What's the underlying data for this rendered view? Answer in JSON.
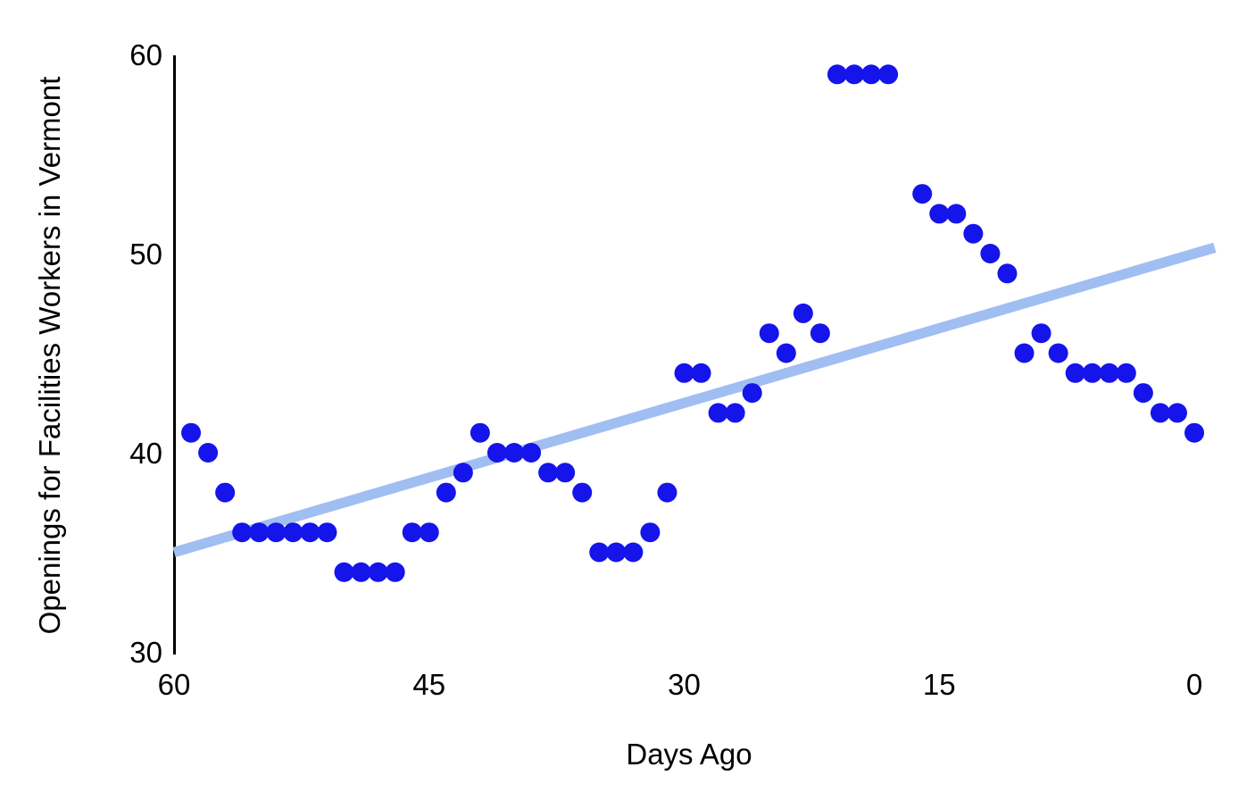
{
  "chart_data": {
    "type": "scatter",
    "title": "",
    "xlabel": "Days Ago",
    "ylabel": "Openings for Facilities Workers in Vermont",
    "x_axis": {
      "ticks": [
        60,
        45,
        30,
        15,
        0
      ],
      "range": [
        60,
        0
      ],
      "reversed": true
    },
    "y_axis": {
      "ticks": [
        30,
        40,
        50,
        60
      ],
      "range": [
        30,
        60
      ]
    },
    "grid": false,
    "legend": "none",
    "points": [
      {
        "x": 59,
        "y": 41
      },
      {
        "x": 58,
        "y": 40
      },
      {
        "x": 57,
        "y": 38
      },
      {
        "x": 56,
        "y": 36
      },
      {
        "x": 55,
        "y": 36
      },
      {
        "x": 54,
        "y": 36
      },
      {
        "x": 53,
        "y": 36
      },
      {
        "x": 52,
        "y": 36
      },
      {
        "x": 51,
        "y": 36
      },
      {
        "x": 50,
        "y": 34
      },
      {
        "x": 49,
        "y": 34
      },
      {
        "x": 48,
        "y": 34
      },
      {
        "x": 47,
        "y": 34
      },
      {
        "x": 46,
        "y": 36
      },
      {
        "x": 45,
        "y": 36
      },
      {
        "x": 44,
        "y": 38
      },
      {
        "x": 43,
        "y": 39
      },
      {
        "x": 42,
        "y": 41
      },
      {
        "x": 41,
        "y": 40
      },
      {
        "x": 40,
        "y": 40
      },
      {
        "x": 39,
        "y": 40
      },
      {
        "x": 38,
        "y": 39
      },
      {
        "x": 37,
        "y": 39
      },
      {
        "x": 36,
        "y": 38
      },
      {
        "x": 35,
        "y": 35
      },
      {
        "x": 34,
        "y": 35
      },
      {
        "x": 33,
        "y": 35
      },
      {
        "x": 32,
        "y": 36
      },
      {
        "x": 31,
        "y": 38
      },
      {
        "x": 30,
        "y": 44
      },
      {
        "x": 29,
        "y": 44
      },
      {
        "x": 28,
        "y": 42
      },
      {
        "x": 27,
        "y": 42
      },
      {
        "x": 26,
        "y": 43
      },
      {
        "x": 25,
        "y": 46
      },
      {
        "x": 24,
        "y": 45
      },
      {
        "x": 23,
        "y": 47
      },
      {
        "x": 22,
        "y": 46
      },
      {
        "x": 21,
        "y": 59
      },
      {
        "x": 20,
        "y": 59
      },
      {
        "x": 19,
        "y": 59
      },
      {
        "x": 18,
        "y": 59
      },
      {
        "x": 16,
        "y": 53
      },
      {
        "x": 15,
        "y": 52
      },
      {
        "x": 14,
        "y": 52
      },
      {
        "x": 13,
        "y": 51
      },
      {
        "x": 12,
        "y": 50
      },
      {
        "x": 11,
        "y": 49
      },
      {
        "x": 10,
        "y": 45
      },
      {
        "x": 9,
        "y": 46
      },
      {
        "x": 8,
        "y": 45
      },
      {
        "x": 7,
        "y": 44
      },
      {
        "x": 6,
        "y": 44
      },
      {
        "x": 5,
        "y": 44
      },
      {
        "x": 4,
        "y": 44
      },
      {
        "x": 3,
        "y": 43
      },
      {
        "x": 2,
        "y": 42
      },
      {
        "x": 1,
        "y": 42
      },
      {
        "x": 0,
        "y": 41
      }
    ],
    "trendline": {
      "start": {
        "x": 60,
        "y": 35.0
      },
      "end": {
        "x": -1.2,
        "y": 50.3
      }
    },
    "colors": {
      "point": "#1414eb",
      "trendline": "#a0bef2",
      "axis_line": "#000000",
      "background": "#ffffff"
    }
  }
}
